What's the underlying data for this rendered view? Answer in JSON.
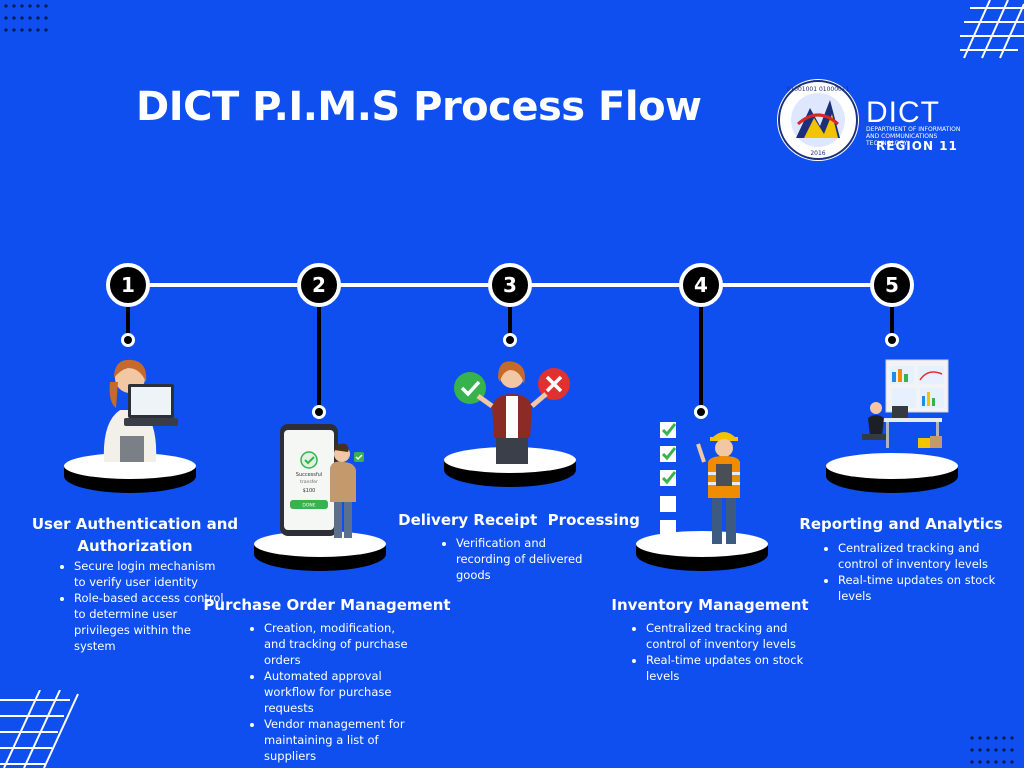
{
  "title": "DICT P.I.M.S Process Flow",
  "logo": {
    "word": "DICT",
    "subtitle": "DEPARTMENT OF INFORMATION AND COMMUNICATIONS TECHNOLOGY",
    "region": "REGION 11",
    "seal_top": "01001001 01000011",
    "seal_year": "2016"
  },
  "steps": [
    {
      "number": "1",
      "title": "User Authentication and Authorization",
      "bullets": [
        "Secure login mechanism to verify user identity",
        "Role-based access control to determine user privileges within the system"
      ]
    },
    {
      "number": "2",
      "title": "Purchase Order Management",
      "bullets": [
        "Creation, modification, and tracking of purchase orders",
        "Automated approval workflow for purchase requests",
        "Vendor management for maintaining a list of suppliers"
      ],
      "phone": {
        "label1": "Successful",
        "label2": "transfer",
        "amount": "$100",
        "button": "DONE"
      }
    },
    {
      "number": "3",
      "title": "Delivery Receipt  Processing",
      "bullets": [
        "Verification and recording of delivered goods"
      ]
    },
    {
      "number": "4",
      "title": "Inventory Management",
      "bullets": [
        "Centralized tracking and control of inventory levels",
        "Real-time updates on stock levels"
      ]
    },
    {
      "number": "5",
      "title": "Reporting and Analytics",
      "bullets": [
        "Centralized tracking and control of inventory levels",
        "Real-time updates on stock levels"
      ]
    }
  ],
  "colors": {
    "background": "#0f4ff0",
    "circle": "#000000",
    "line": "#ffffff"
  }
}
